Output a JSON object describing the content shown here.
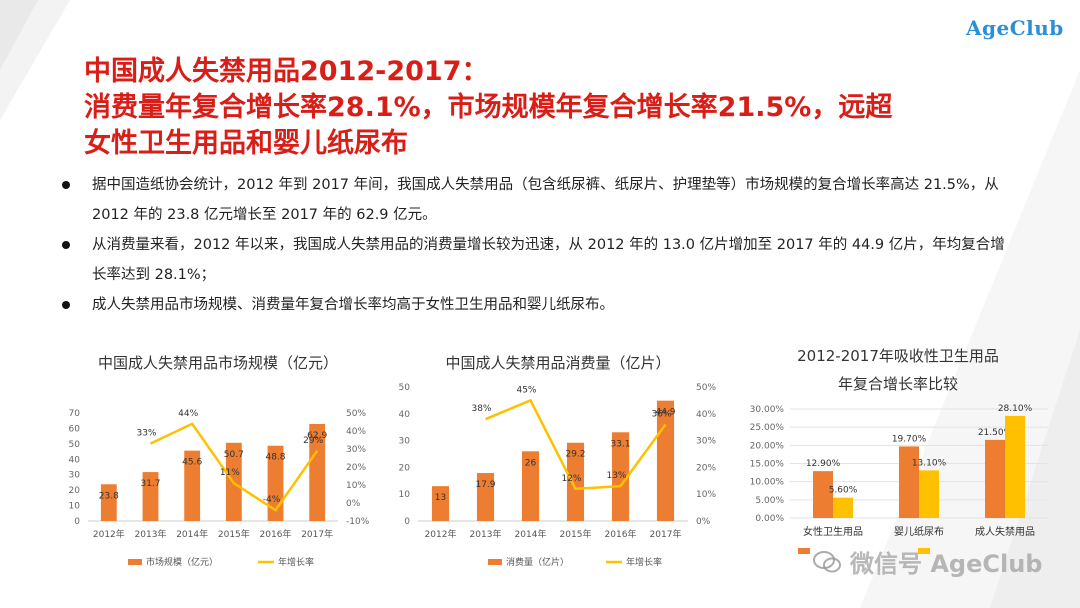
{
  "logo": {
    "text": "AgeClub"
  },
  "title": {
    "lines": [
      "中国成人失禁用品2012-2017：",
      "消费量年复合增长率28.1%，市场规模年复合增长率21.5%，远超",
      "女性卫生用品和婴儿纸尿布"
    ]
  },
  "bullets": [
    "据中国造纸协会统计，2012  年到 2017 年间，我国成人失禁用品（包含纸尿裤、纸尿片、护理垫等）市场规模的复合增长率高达 21.5%，从 2012 年的 23.8 亿元增长至 2017 年的 62.9 亿元。",
    "从消费量来看，2012  年以来，我国成人失禁用品的消费量增长较为迅速，从  2012 年的 13.0 亿片增加至 2017 年的 44.9 亿片，年均复合增长率达到 28.1%；",
    "成人失禁用品市场规模、消费量年复合增长率均高于女性卫生用品和婴儿纸尿布。"
  ],
  "colors": {
    "title_red": "#d91e18",
    "bar_orange": "#ed7d31",
    "line_yellow": "#ffc000",
    "logo_blue": "#2a8fd6"
  },
  "watermark": {
    "text": "微信号 AgeClub",
    "icon": "wechat-icon"
  },
  "chart_data": [
    {
      "type": "bar",
      "title": "中国成人失禁用品市场规模（亿元）",
      "categories": [
        "2012年",
        "2013年",
        "2014年",
        "2015年",
        "2016年",
        "2017年"
      ],
      "series": [
        {
          "name": "市场规模（亿元）",
          "kind": "bar",
          "axis": "left",
          "values": [
            23.8,
            31.7,
            45.6,
            50.7,
            48.8,
            62.9
          ],
          "labels": [
            "23.8",
            "31.7",
            "45.6",
            "50.7",
            "48.8",
            "62.9"
          ]
        },
        {
          "name": "年增长率",
          "kind": "line",
          "axis": "right",
          "values": [
            null,
            33,
            44,
            11,
            -4,
            29
          ],
          "labels": [
            "",
            "33%",
            "44%",
            "11%",
            "-4%",
            "29%"
          ]
        }
      ],
      "ylim": [
        0,
        70
      ],
      "yticks": [
        "0",
        "10",
        "20",
        "30",
        "40",
        "50",
        "60",
        "70"
      ],
      "y2lim": [
        -10,
        50
      ],
      "y2ticks": [
        "-10%",
        "0%",
        "10%",
        "20%",
        "30%",
        "40%",
        "50%"
      ],
      "grid": false,
      "legend": "bottom"
    },
    {
      "type": "bar",
      "title": "中国成人失禁用品消费量（亿片）",
      "categories": [
        "2012年",
        "2013年",
        "2014年",
        "2015年",
        "2016年",
        "2017年"
      ],
      "series": [
        {
          "name": "消费量（亿片）",
          "kind": "bar",
          "axis": "left",
          "values": [
            13,
            17.9,
            26,
            29.2,
            33.1,
            44.9
          ],
          "labels": [
            "13",
            "17.9",
            "26",
            "29.2",
            "33.1",
            "44.9"
          ]
        },
        {
          "name": "年增长率",
          "kind": "line",
          "axis": "right",
          "values": [
            null,
            38,
            45,
            12,
            13,
            36
          ],
          "labels": [
            "",
            "38%",
            "45%",
            "12%",
            "13%",
            "36%"
          ]
        }
      ],
      "ylim": [
        0,
        50
      ],
      "yticks": [
        "0",
        "10",
        "20",
        "30",
        "40",
        "50"
      ],
      "y2lim": [
        0,
        50
      ],
      "y2ticks": [
        "0%",
        "10%",
        "20%",
        "30%",
        "40%",
        "50%"
      ],
      "grid": false,
      "legend": "bottom"
    },
    {
      "type": "bar",
      "title": "2012-2017年吸收性卫生用品年复合增长率比较",
      "title_lines": [
        "2012-2017年吸收性卫生用品",
        "年复合增长率比较"
      ],
      "categories": [
        "女性卫生用品",
        "婴儿纸尿布",
        "成人失禁用品"
      ],
      "series": [
        {
          "name": "",
          "kind": "bar",
          "values": [
            12.9,
            19.7,
            21.5
          ],
          "labels": [
            "12.90%",
            "19.70%",
            "21.50%"
          ]
        },
        {
          "name": "",
          "kind": "bar",
          "values": [
            5.6,
            13.1,
            28.1
          ],
          "labels": [
            "5.60%",
            "13.10%",
            "28.10%"
          ]
        }
      ],
      "ylim": [
        0,
        30
      ],
      "yticks": [
        "0.00%",
        "5.00%",
        "10.00%",
        "15.00%",
        "20.00%",
        "25.00%",
        "30.00%"
      ],
      "grid": true,
      "legend": "bottom"
    }
  ]
}
